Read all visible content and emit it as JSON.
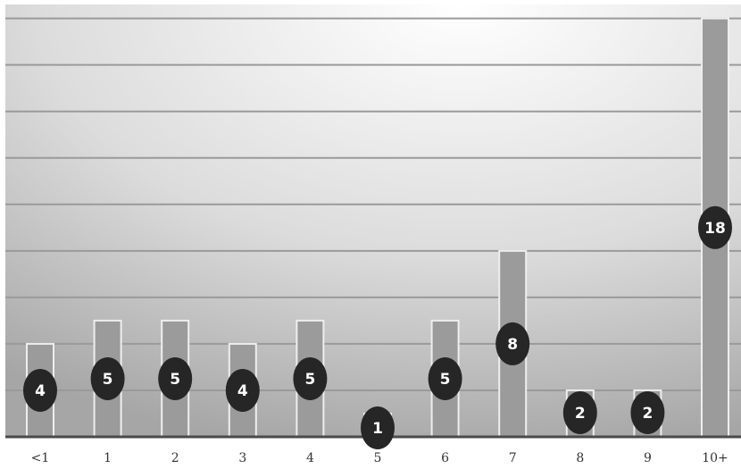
{
  "chart_data": {
    "type": "bar",
    "categories": [
      "<1",
      "1",
      "2",
      "3",
      "4",
      "5",
      "6",
      "7",
      "8",
      "9",
      "10+"
    ],
    "values": [
      4,
      5,
      5,
      4,
      5,
      1,
      5,
      8,
      2,
      2,
      18
    ],
    "ylim": [
      0,
      18.6
    ],
    "grid": true,
    "legend": "none",
    "colors": {
      "bar_fill": "#9b9b9b",
      "bar_stroke": "#eeeeee",
      "badge": "#262626",
      "gridline": "#9a9a9a",
      "axis": "#4a4a4a"
    }
  }
}
